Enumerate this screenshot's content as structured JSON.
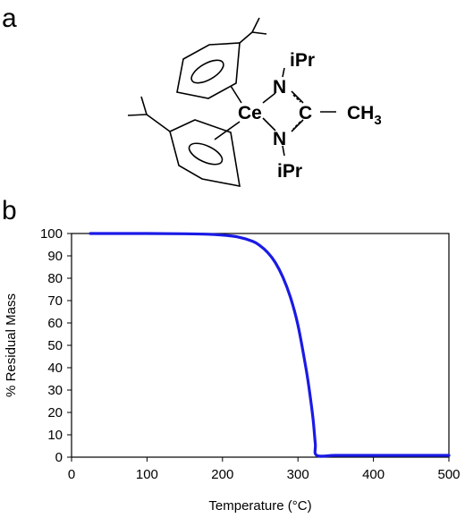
{
  "panel_a": {
    "letter": "a",
    "structure": {
      "center": "Ce",
      "nitrogen_top": "N",
      "nitrogen_bottom": "N",
      "carbon": "C",
      "substituent_top": "iPr",
      "substituent_bottom": "iPr",
      "methyl": "CH",
      "methyl_subscript": "3"
    }
  },
  "panel_b": {
    "letter": "b"
  },
  "colors": {
    "curve": "#1a1ae6",
    "axis": "#000000"
  },
  "chart_data": {
    "type": "line",
    "title": "",
    "xlabel": "Temperature (°C)",
    "ylabel": "% Residual Mass",
    "xlim": [
      0,
      500
    ],
    "ylim": [
      0,
      100
    ],
    "xticks": [
      "0",
      "100",
      "200",
      "300",
      "400",
      "500"
    ],
    "yticks": [
      "0",
      "10",
      "20",
      "30",
      "40",
      "50",
      "60",
      "70",
      "80",
      "90",
      "100"
    ],
    "grid": false,
    "legend": "none",
    "series": [
      {
        "x": [
          25,
          100,
          150,
          180,
          200,
          220,
          240,
          250,
          260,
          270,
          280,
          290,
          300,
          310,
          315,
          320,
          323,
          325,
          350,
          400,
          450,
          500
        ],
        "y": [
          100,
          100,
          99.9,
          99.7,
          99.3,
          98.5,
          96.5,
          94.5,
          91.5,
          87,
          80.5,
          71.5,
          59,
          41,
          30,
          17,
          6,
          0.8,
          0.8,
          0.8,
          0.8,
          0.8
        ]
      }
    ]
  }
}
